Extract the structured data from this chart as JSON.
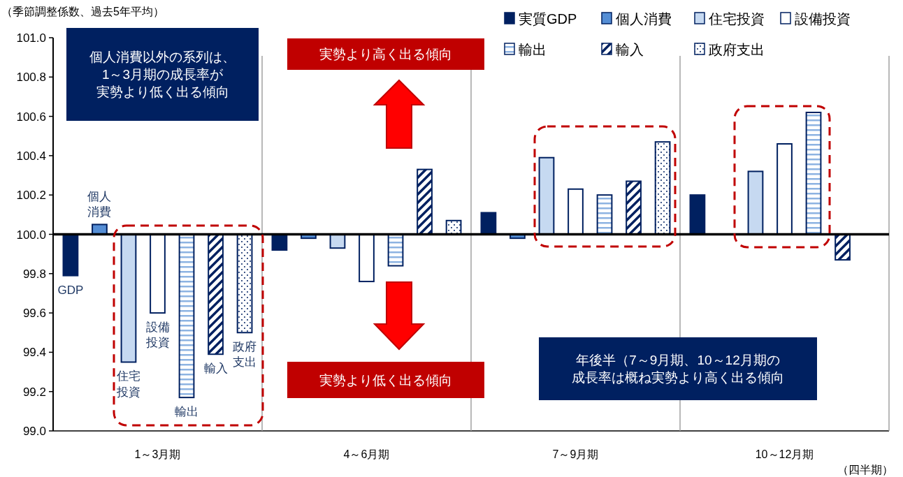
{
  "chart_data": {
    "type": "bar",
    "ylabel": "（季節調整係数、過去5年平均）",
    "xlabel": "（四半期）",
    "categories": [
      "1～3月期",
      "4～6月期",
      "7～9月期",
      "10～12月期"
    ],
    "series": [
      {
        "name": "実質GDP",
        "color": "#002060",
        "base": [
          100,
          100,
          100,
          100
        ],
        "values": [
          -0.21,
          -0.08,
          0.11,
          0.2
        ]
      },
      {
        "name": "個人消費",
        "color": "#558ed5",
        "base": [
          100,
          100,
          100,
          null
        ],
        "values": [
          0.05,
          -0.02,
          -0.02,
          null
        ]
      },
      {
        "name": "住宅投資",
        "color": "#c6d9f1",
        "base": [
          100,
          100,
          100,
          100
        ],
        "values": [
          -0.65,
          -0.07,
          0.39,
          0.32
        ]
      },
      {
        "name": "設備投資",
        "color": "#ffffff",
        "base": [
          100,
          100,
          100,
          100
        ],
        "values": [
          -0.4,
          -0.24,
          0.23,
          0.46
        ]
      },
      {
        "name": "輸出",
        "color": "#002060",
        "base": [
          100,
          100,
          100,
          100
        ],
        "values": [
          -0.83,
          -0.16,
          0.2,
          0.62
        ]
      },
      {
        "name": "輸入",
        "color": "#002060",
        "base": [
          100,
          100,
          100,
          100
        ],
        "values": [
          -0.61,
          0.33,
          0.27,
          -0.13
        ]
      },
      {
        "name": "政府支出",
        "color": "#002060",
        "base": [
          100,
          100,
          100,
          null
        ],
        "values": [
          -0.5,
          0.07,
          0.47,
          null
        ]
      }
    ],
    "ylim": [
      99.0,
      101.0
    ],
    "yticks": [
      {
        "value": 99.0,
        "label": "99.0"
      },
      {
        "value": 99.2,
        "label": "99.2"
      },
      {
        "value": 99.4,
        "label": "99.4"
      },
      {
        "value": 99.6,
        "label": "99.6"
      },
      {
        "value": 99.8,
        "label": "99.8"
      },
      {
        "value": 100.0,
        "label": "100.0"
      },
      {
        "value": 100.2,
        "label": "100.2"
      },
      {
        "value": 100.4,
        "label": "100.4"
      },
      {
        "value": 100.6,
        "label": "100.6"
      },
      {
        "value": 100.8,
        "label": "100.8"
      },
      {
        "value": 101.0,
        "label": "101.0"
      }
    ],
    "legend": "top right",
    "ref_lines": [
      {
        "axis": "y",
        "value": 100.0,
        "color": "#000000"
      }
    ],
    "annotations": [
      "GDP",
      "個人消費",
      "住宅投資",
      "設備投資",
      "輸出",
      "輸入",
      "政府支出",
      "個人消費以外の系列は、1～3月期の成長率が実勢より低く出る傾向",
      "実勢より高く出る傾向",
      "実勢より低く出る傾向",
      "年後半（7～9月期、10～12月期の成長率は概ね実勢より高く出る傾向"
    ]
  }
}
